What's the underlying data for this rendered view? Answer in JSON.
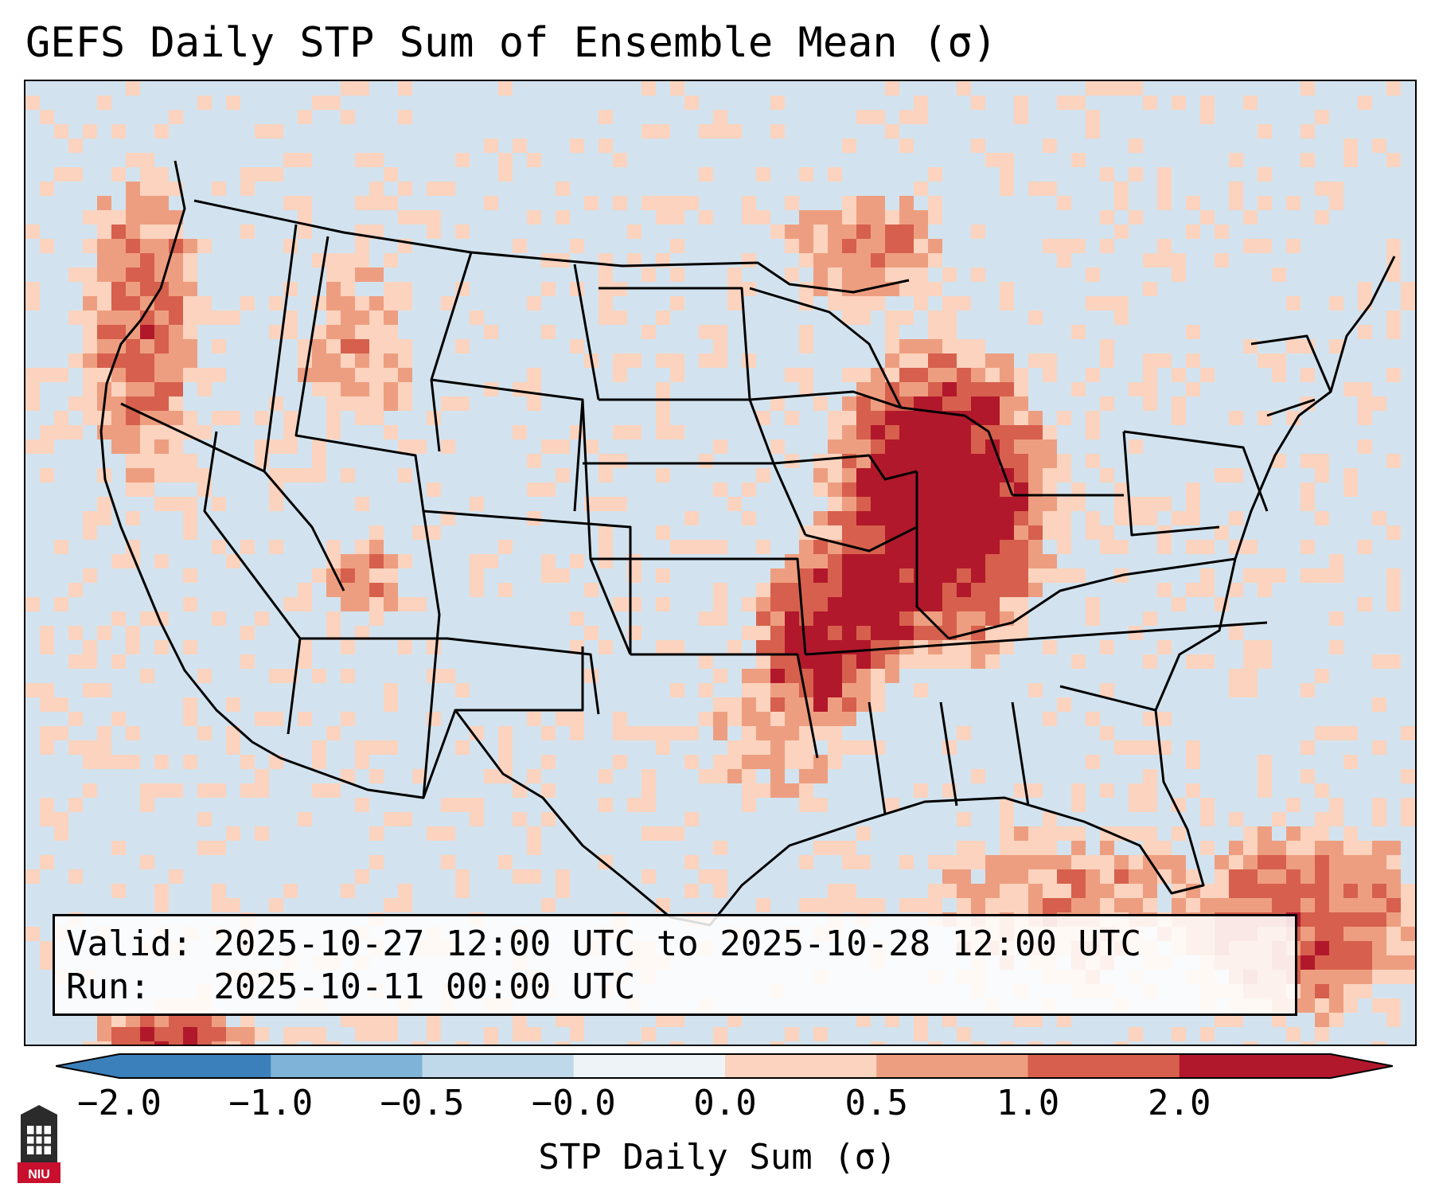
{
  "title": "GEFS Daily STP Sum of Ensemble Mean (σ)",
  "info": {
    "valid_line": "Valid: 2025-10-27 12:00 UTC to 2025-10-28 12:00 UTC",
    "run_line": "Run:   2025-10-11 00:00 UTC"
  },
  "colorbar": {
    "label": "STP Daily Sum (σ)",
    "ticks": [
      "−2.0",
      "−1.0",
      "−0.5",
      "−0.0",
      "0.0",
      "0.5",
      "1.0",
      "2.0"
    ],
    "colors": [
      "#3b80bb",
      "#7fb4d8",
      "#bfd9ea",
      "#eef3f7",
      "#fbd3be",
      "#ee9e80",
      "#d6604d",
      "#b2182b"
    ],
    "extend": "both"
  },
  "map": {
    "region": "Contiguous United States",
    "background_color": "#d2e3ef",
    "boundary_color": "#000000"
  },
  "logo": {
    "text": "NIU",
    "icon": "university-tower-logo"
  }
}
